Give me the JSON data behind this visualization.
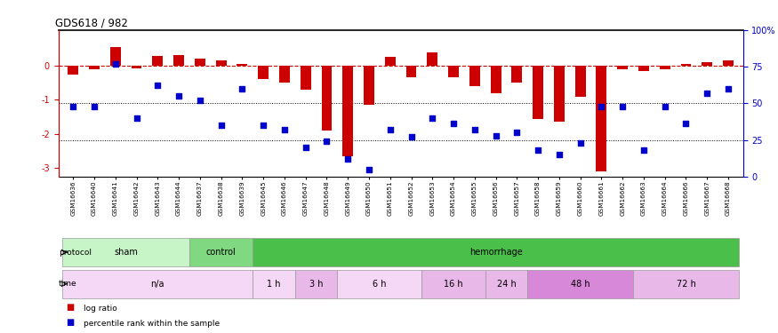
{
  "title": "GDS618 / 982",
  "samples": [
    "GSM16636",
    "GSM16640",
    "GSM16641",
    "GSM16642",
    "GSM16643",
    "GSM16644",
    "GSM16637",
    "GSM16638",
    "GSM16639",
    "GSM16645",
    "GSM16646",
    "GSM16647",
    "GSM16648",
    "GSM16649",
    "GSM16650",
    "GSM16651",
    "GSM16652",
    "GSM16653",
    "GSM16654",
    "GSM16655",
    "GSM16656",
    "GSM16657",
    "GSM16658",
    "GSM16659",
    "GSM16660",
    "GSM16661",
    "GSM16662",
    "GSM16663",
    "GSM16664",
    "GSM16666",
    "GSM16667",
    "GSM16668"
  ],
  "log_ratio": [
    -0.25,
    -0.1,
    0.55,
    -0.08,
    0.3,
    0.32,
    0.2,
    0.15,
    0.05,
    -0.4,
    -0.5,
    -0.7,
    -1.9,
    -2.65,
    -1.15,
    0.25,
    -0.35,
    0.4,
    -0.35,
    -0.6,
    -0.8,
    -0.5,
    -1.55,
    -1.65,
    -0.9,
    -3.1,
    -0.1,
    -0.15,
    -0.1,
    0.05,
    0.1,
    0.15
  ],
  "percentile_rank": [
    48,
    48,
    77,
    40,
    62,
    55,
    52,
    35,
    60,
    35,
    32,
    20,
    24,
    12,
    5,
    32,
    27,
    40,
    36,
    32,
    28,
    30,
    18,
    15,
    23,
    48,
    48,
    18,
    48,
    36,
    57,
    60
  ],
  "protocol_groups": [
    {
      "label": "sham",
      "start": 0,
      "end": 6,
      "color": "#c8f5c8"
    },
    {
      "label": "control",
      "start": 6,
      "end": 9,
      "color": "#80d880"
    },
    {
      "label": "hemorrhage",
      "start": 9,
      "end": 32,
      "color": "#4abf4a"
    }
  ],
  "time_groups": [
    {
      "label": "n/a",
      "start": 0,
      "end": 9,
      "color": "#f5d8f5"
    },
    {
      "label": "1 h",
      "start": 9,
      "end": 11,
      "color": "#f5d8f5"
    },
    {
      "label": "3 h",
      "start": 11,
      "end": 13,
      "color": "#e8b8e8"
    },
    {
      "label": "6 h",
      "start": 13,
      "end": 17,
      "color": "#f5d8f5"
    },
    {
      "label": "16 h",
      "start": 17,
      "end": 20,
      "color": "#e8b8e8"
    },
    {
      "label": "24 h",
      "start": 20,
      "end": 22,
      "color": "#e8b8e8"
    },
    {
      "label": "48 h",
      "start": 22,
      "end": 27,
      "color": "#d888d8"
    },
    {
      "label": "72 h",
      "start": 27,
      "end": 32,
      "color": "#e8b8e8"
    }
  ],
  "bar_color": "#cc0000",
  "dot_color": "#0000cc",
  "ylim_left": [
    -3.25,
    1.05
  ],
  "ylim_right": [
    0,
    100
  ]
}
